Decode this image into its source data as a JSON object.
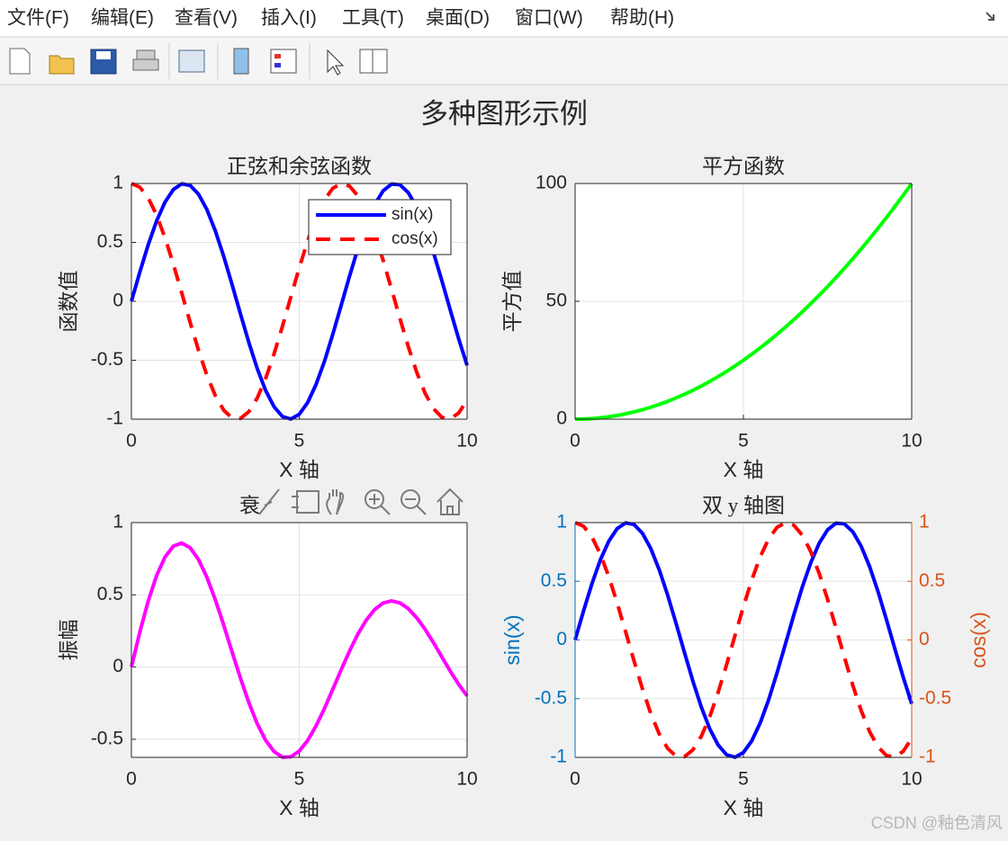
{
  "window": {
    "menu": [
      "文件(F)",
      "编辑(E)",
      "查看(V)",
      "插入(I)",
      "工具(T)",
      "桌面(D)",
      "窗口(W)",
      "帮助(H)"
    ],
    "figure_title": "多种图形示例",
    "watermark": "CSDN @釉色清风"
  },
  "chart_data": [
    {
      "type": "line",
      "title": "正弦和余弦函数",
      "xlabel": "X 轴",
      "ylabel": "函数值",
      "x": [
        0,
        0.25,
        0.5,
        0.75,
        1,
        1.25,
        1.5,
        1.75,
        2,
        2.25,
        2.5,
        2.75,
        3,
        3.25,
        3.5,
        3.75,
        4,
        4.25,
        4.5,
        4.75,
        5,
        5.25,
        5.5,
        5.75,
        6,
        6.25,
        6.5,
        6.75,
        7,
        7.25,
        7.5,
        7.75,
        8,
        8.25,
        8.5,
        8.75,
        9,
        9.25,
        9.5,
        9.75,
        10
      ],
      "series": [
        {
          "name": "sin(x)",
          "color": "#0000ff",
          "line_style": "-",
          "values": [
            0,
            0.247,
            0.479,
            0.682,
            0.841,
            0.949,
            0.997,
            0.984,
            0.909,
            0.778,
            0.598,
            0.382,
            0.141,
            -0.108,
            -0.351,
            -0.572,
            -0.757,
            -0.895,
            -0.978,
            -0.999,
            -0.959,
            -0.859,
            -0.706,
            -0.51,
            -0.279,
            -0.033,
            0.215,
            0.451,
            0.657,
            0.823,
            0.938,
            0.995,
            0.989,
            0.922,
            0.798,
            0.625,
            0.412,
            0.173,
            -0.075,
            -0.319,
            -0.544
          ]
        },
        {
          "name": "cos(x)",
          "color": "#ff0000",
          "line_style": "--",
          "values": [
            1,
            0.969,
            0.878,
            0.732,
            0.54,
            0.315,
            0.071,
            -0.178,
            -0.416,
            -0.628,
            -0.801,
            -0.924,
            -0.99,
            -0.994,
            -0.936,
            -0.82,
            -0.654,
            -0.446,
            -0.211,
            0.038,
            0.284,
            0.512,
            0.709,
            0.861,
            0.96,
            0.999,
            0.977,
            0.893,
            0.754,
            0.568,
            0.347,
            0.103,
            -0.146,
            -0.386,
            -0.602,
            -0.781,
            -0.911,
            -0.985,
            -0.997,
            -0.948,
            -0.839
          ]
        }
      ],
      "xlim": [
        0,
        10
      ],
      "xticks": [
        0,
        5,
        10
      ],
      "ylim": [
        -1,
        1
      ],
      "yticks": [
        -1,
        -0.5,
        0,
        0.5,
        1
      ],
      "grid": true,
      "legend": "northeast"
    },
    {
      "type": "line",
      "title": "平方函数",
      "xlabel": "X 轴",
      "ylabel": "平方值",
      "x": [
        0,
        0.25,
        0.5,
        0.75,
        1,
        1.25,
        1.5,
        1.75,
        2,
        2.25,
        2.5,
        2.75,
        3,
        3.25,
        3.5,
        3.75,
        4,
        4.25,
        4.5,
        4.75,
        5,
        5.25,
        5.5,
        5.75,
        6,
        6.25,
        6.5,
        6.75,
        7,
        7.25,
        7.5,
        7.75,
        8,
        8.25,
        8.5,
        8.75,
        9,
        9.25,
        9.5,
        9.75,
        10
      ],
      "series": [
        {
          "color": "#00ff00",
          "line_style": "-",
          "values": [
            0,
            0.0625,
            0.25,
            0.5625,
            1,
            1.5625,
            2.25,
            3.0625,
            4,
            5.0625,
            6.25,
            7.5625,
            9,
            10.5625,
            12.25,
            14.0625,
            16,
            18.0625,
            20.25,
            22.5625,
            25,
            27.5625,
            30.25,
            33.0625,
            36,
            39.0625,
            42.25,
            45.5625,
            49,
            52.5625,
            56.25,
            60.0625,
            64,
            68.0625,
            72.25,
            76.5625,
            81,
            85.5625,
            90.25,
            95.0625,
            100
          ]
        }
      ],
      "xlim": [
        0,
        10
      ],
      "xticks": [
        0,
        5,
        10
      ],
      "ylim": [
        0,
        100
      ],
      "yticks": [
        0,
        50,
        100
      ],
      "grid": true
    },
    {
      "type": "line",
      "title": "衰",
      "xlabel": "X 轴",
      "ylabel": "振幅",
      "x": [
        0,
        0.25,
        0.5,
        0.75,
        1,
        1.25,
        1.5,
        1.75,
        2,
        2.25,
        2.5,
        2.75,
        3,
        3.25,
        3.5,
        3.75,
        4,
        4.25,
        4.5,
        4.75,
        5,
        5.25,
        5.5,
        5.75,
        6,
        6.25,
        6.5,
        6.75,
        7,
        7.25,
        7.5,
        7.75,
        8,
        8.25,
        8.5,
        8.75,
        9,
        9.25,
        9.5,
        9.75,
        10
      ],
      "series": [
        {
          "color": "#ff00ff",
          "line_style": "-",
          "values": [
            0,
            0.241,
            0.456,
            0.633,
            0.761,
            0.837,
            0.858,
            0.826,
            0.744,
            0.621,
            0.466,
            0.29,
            0.104,
            -0.078,
            -0.247,
            -0.393,
            -0.507,
            -0.585,
            -0.624,
            -0.621,
            -0.582,
            -0.508,
            -0.407,
            -0.287,
            -0.153,
            -0.018,
            0.112,
            0.23,
            0.326,
            0.399,
            0.443,
            0.458,
            0.444,
            0.404,
            0.341,
            0.261,
            0.168,
            0.069,
            -0.029,
            -0.12,
            -0.2
          ]
        }
      ],
      "xlim": [
        0,
        10
      ],
      "xticks": [
        0,
        5,
        10
      ],
      "ylim": [
        -0.625,
        1
      ],
      "yticks": [
        -0.5,
        0,
        0.5,
        1
      ],
      "grid": true
    },
    {
      "type": "line",
      "title": "双 y 轴图",
      "xlabel": "X 轴",
      "ylabel": "sin(x)",
      "y2label": "cos(x)",
      "ylabel_color": "#0072bd",
      "y2label_color": "#d95319",
      "x": [
        0,
        0.25,
        0.5,
        0.75,
        1,
        1.25,
        1.5,
        1.75,
        2,
        2.25,
        2.5,
        2.75,
        3,
        3.25,
        3.5,
        3.75,
        4,
        4.25,
        4.5,
        4.75,
        5,
        5.25,
        5.5,
        5.75,
        6,
        6.25,
        6.5,
        6.75,
        7,
        7.25,
        7.5,
        7.75,
        8,
        8.25,
        8.5,
        8.75,
        9,
        9.25,
        9.5,
        9.75,
        10
      ],
      "series": [
        {
          "color": "#0000ff",
          "line_style": "-",
          "values": [
            0,
            0.247,
            0.479,
            0.682,
            0.841,
            0.949,
            0.997,
            0.984,
            0.909,
            0.778,
            0.598,
            0.382,
            0.141,
            -0.108,
            -0.351,
            -0.572,
            -0.757,
            -0.895,
            -0.978,
            -0.999,
            -0.959,
            -0.859,
            -0.706,
            -0.51,
            -0.279,
            -0.033,
            0.215,
            0.451,
            0.657,
            0.823,
            0.938,
            0.995,
            0.989,
            0.922,
            0.798,
            0.625,
            0.412,
            0.173,
            -0.075,
            -0.319,
            -0.544
          ]
        },
        {
          "color": "#ff0000",
          "line_style": "--",
          "axis": "y2",
          "values": [
            1,
            0.969,
            0.878,
            0.732,
            0.54,
            0.315,
            0.071,
            -0.178,
            -0.416,
            -0.628,
            -0.801,
            -0.924,
            -0.99,
            -0.994,
            -0.936,
            -0.82,
            -0.654,
            -0.446,
            -0.211,
            0.038,
            0.284,
            0.512,
            0.709,
            0.861,
            0.96,
            0.999,
            0.977,
            0.893,
            0.754,
            0.568,
            0.347,
            0.103,
            -0.146,
            -0.386,
            -0.602,
            -0.781,
            -0.911,
            -0.985,
            -0.997,
            -0.948,
            -0.839
          ]
        }
      ],
      "xlim": [
        0,
        10
      ],
      "xticks": [
        0,
        5,
        10
      ],
      "ylim": [
        -1,
        1
      ],
      "yticks": [
        -1,
        -0.5,
        0,
        0.5,
        1
      ],
      "y2lim": [
        -1,
        1
      ],
      "y2ticks": [
        -1,
        -0.5,
        0,
        0.5,
        1
      ],
      "grid": true
    }
  ]
}
